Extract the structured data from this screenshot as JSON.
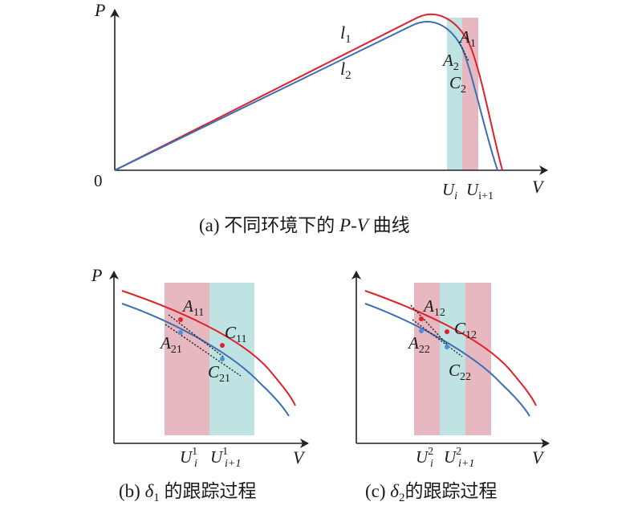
{
  "colors": {
    "red_curve": "#e0202a",
    "blue_curve": "#3a6fb5",
    "pink_band": "#e8b8c0",
    "cyan_band": "#bfe3e3",
    "axis": "#222222"
  },
  "panel_a": {
    "y_axis": "P",
    "x_axis": "V",
    "origin": "0",
    "curve_1": {
      "letter": "l",
      "sub": "1"
    },
    "curve_2": {
      "letter": "l",
      "sub": "2"
    },
    "point_A1": {
      "letter": "A",
      "sub": "1"
    },
    "point_A2": {
      "letter": "A",
      "sub": "2"
    },
    "point_C2": {
      "letter": "C",
      "sub": "2"
    },
    "tick_Ui": {
      "letter": "U",
      "sub": "i"
    },
    "tick_Ui1": {
      "letter": "U",
      "sub": "i+1"
    },
    "caption": {
      "pre": "(a) 不同环境下的 ",
      "P": "P",
      "dash": "-",
      "V": "V",
      "post": " 曲线"
    }
  },
  "panel_b": {
    "y_axis": "P",
    "x_axis": "V",
    "point_A11": {
      "letter": "A",
      "sub": "11"
    },
    "point_C11": {
      "letter": "C",
      "sub": "11"
    },
    "point_A21": {
      "letter": "A",
      "sub": "21"
    },
    "point_C21": {
      "letter": "C",
      "sub": "21"
    },
    "tick_Ui": {
      "letter": "U",
      "sup": "1",
      "sub": "i"
    },
    "tick_Ui1": {
      "letter": "U",
      "sup": "1",
      "sub": "i+1"
    },
    "caption": {
      "pre": "(b) ",
      "delta": "δ",
      "sub": "1",
      "post": " 的跟踪过程"
    }
  },
  "panel_c": {
    "x_axis": "V",
    "point_A12": {
      "letter": "A",
      "sub": "12"
    },
    "point_C12": {
      "letter": "C",
      "sub": "12"
    },
    "point_A22": {
      "letter": "A",
      "sub": "22"
    },
    "point_C22": {
      "letter": "C",
      "sub": "22"
    },
    "tick_Ui": {
      "letter": "U",
      "sup": "2",
      "sub": "i"
    },
    "tick_Ui1": {
      "letter": "U",
      "sup": "2",
      "sub": "i+1"
    },
    "caption": {
      "pre": "(c) ",
      "delta": "δ",
      "sub": "2",
      "post": "的跟踪过程"
    }
  }
}
